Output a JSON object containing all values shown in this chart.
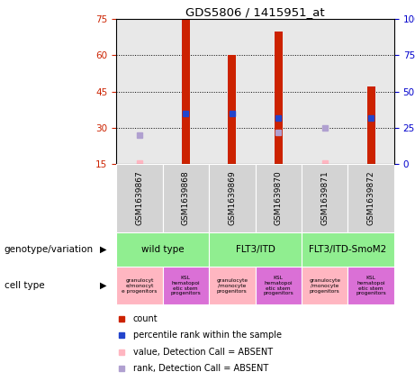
{
  "title": "GDS5806 / 1415951_at",
  "samples": [
    "GSM1639867",
    "GSM1639868",
    "GSM1639869",
    "GSM1639870",
    "GSM1639871",
    "GSM1639872"
  ],
  "red_bar_heights": [
    null,
    75,
    60,
    70,
    null,
    47
  ],
  "blue_marker_y": [
    null,
    36,
    36,
    34,
    null,
    34
  ],
  "pink_marker_y": [
    15.5,
    null,
    null,
    null,
    15.5,
    null
  ],
  "lavender_marker_y": [
    27,
    null,
    null,
    28,
    30,
    null
  ],
  "ylim": [
    15,
    75
  ],
  "yticks_left": [
    15,
    30,
    45,
    60,
    75
  ],
  "yticks_right": [
    0,
    25,
    50,
    75,
    100
  ],
  "genotype_info": [
    [
      0,
      2,
      "wild type"
    ],
    [
      2,
      4,
      "FLT3/ITD"
    ],
    [
      4,
      6,
      "FLT3/ITD-SmoM2"
    ]
  ],
  "genotype_color": "#90EE90",
  "cell_labels": [
    "granulocyt\ne/monocyt\ne progenitors",
    "KSL\nhematopoi\netic stem\nprogenitors",
    "granulocyte\n/monocyte\nprogenitors",
    "KSL\nhematopoi\netic stem\nprogenitors",
    "granulocyte\n/monocyte\nprogenitors",
    "KSL\nhematopoi\netic stem\nprogenitors"
  ],
  "cell_colors": [
    "#FFB6C1",
    "#DA70D6",
    "#FFB6C1",
    "#DA70D6",
    "#FFB6C1",
    "#DA70D6"
  ],
  "bar_color": "#CC2200",
  "blue_color": "#2244CC",
  "pink_marker_color": "#FFB6C1",
  "lavender_color": "#B0A0D0",
  "background_color": "#E8E8E8",
  "left_label_color": "#CC2200",
  "right_label_color": "#0000CC",
  "sample_bg_color": "#D3D3D3",
  "legend_items": [
    [
      "#CC2200",
      "count"
    ],
    [
      "#2244CC",
      "percentile rank within the sample"
    ],
    [
      "#FFB6C1",
      "value, Detection Call = ABSENT"
    ],
    [
      "#B0A0D0",
      "rank, Detection Call = ABSENT"
    ]
  ]
}
